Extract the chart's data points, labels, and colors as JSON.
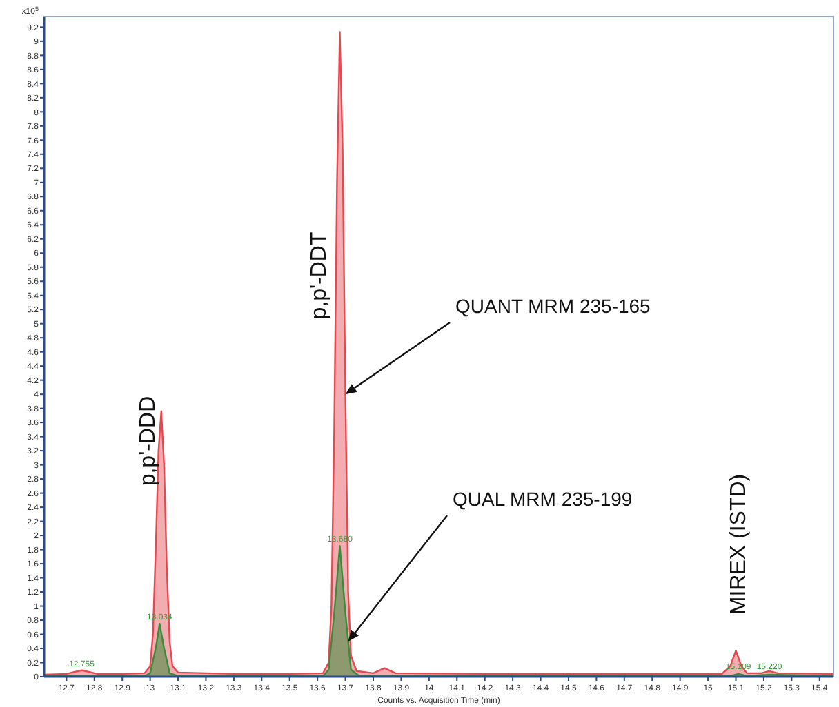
{
  "chart_data": {
    "type": "area",
    "xlabel": "Counts vs. Acquisition Time (min)",
    "ylabel": "x10$^{5}$",
    "xlim": [
      12.62,
      15.45
    ],
    "ylim": [
      0,
      9.35
    ],
    "xticks": [
      12.7,
      12.8,
      12.9,
      13,
      13.1,
      13.2,
      13.3,
      13.4,
      13.5,
      13.6,
      13.7,
      13.8,
      13.9,
      14,
      14.1,
      14.2,
      14.3,
      14.4,
      14.5,
      14.6,
      14.7,
      14.8,
      14.9,
      15,
      15.1,
      15.2,
      15.3,
      15.4
    ],
    "yticks": [
      0,
      0.2,
      0.4,
      0.6,
      0.8,
      1,
      1.2,
      1.4,
      1.6,
      1.8,
      2,
      2.2,
      2.4,
      2.6,
      2.8,
      3,
      3.2,
      3.4,
      3.6,
      3.8,
      4,
      4.2,
      4.4,
      4.6,
      4.8,
      5,
      5.2,
      5.4,
      5.6,
      5.8,
      6,
      6.2,
      6.4,
      6.6,
      6.8,
      7,
      7.2,
      7.4,
      7.6,
      7.8,
      8,
      8.2,
      8.4,
      8.6,
      8.8,
      9,
      9.2
    ],
    "grid": false,
    "series": [
      {
        "color": "#e5484f",
        "x": [
          12.62,
          12.7,
          12.73,
          12.755,
          12.78,
          12.81,
          12.9,
          12.98,
          13.0,
          13.01,
          13.02,
          13.03,
          13.04,
          13.05,
          13.06,
          13.07,
          13.08,
          13.1,
          13.3,
          13.5,
          13.62,
          13.64,
          13.65,
          13.66,
          13.67,
          13.68,
          13.69,
          13.7,
          13.71,
          13.72,
          13.74,
          13.8,
          13.84,
          13.88,
          14.2,
          14.8,
          15.05,
          15.08,
          15.1,
          15.12,
          15.14,
          15.19,
          15.22,
          15.25,
          15.45
        ],
        "values": [
          0.03,
          0.04,
          0.07,
          0.09,
          0.07,
          0.04,
          0.04,
          0.05,
          0.15,
          0.6,
          1.8,
          3.2,
          3.76,
          3.0,
          1.5,
          0.5,
          0.15,
          0.06,
          0.04,
          0.04,
          0.05,
          0.2,
          1.0,
          3.5,
          7.0,
          9.13,
          7.5,
          4.0,
          1.2,
          0.3,
          0.08,
          0.05,
          0.12,
          0.05,
          0.04,
          0.04,
          0.04,
          0.15,
          0.37,
          0.15,
          0.05,
          0.05,
          0.08,
          0.05,
          0.04
        ]
      },
      {
        "color": "#3c8a3c",
        "x": [
          12.62,
          12.98,
          13.0,
          13.02,
          13.034,
          13.05,
          13.07,
          13.1,
          13.62,
          13.64,
          13.66,
          13.68,
          13.7,
          13.72,
          13.75,
          15.08,
          15.109,
          15.14,
          15.22,
          15.45
        ],
        "values": [
          0.01,
          0.01,
          0.05,
          0.4,
          0.75,
          0.4,
          0.05,
          0.01,
          0.01,
          0.1,
          0.9,
          1.85,
          0.9,
          0.1,
          0.01,
          0.01,
          0.04,
          0.01,
          0.03,
          0.01
        ]
      }
    ],
    "annotations": [
      "p,p'-DDD",
      "p,p'-DDT",
      "MIREX (ISTD)",
      {
        "text": "QUANT MRM 235-165",
        "x": 13.7,
        "y": 4.0
      },
      {
        "text": "QUAL MRM 235-199",
        "x": 13.71,
        "y": 0.5
      },
      {
        "text": "12.755",
        "x": 12.755,
        "y": 0.09
      },
      {
        "text": "13.034",
        "x": 13.034,
        "y": 0.75
      },
      {
        "text": "13.680",
        "x": 13.68,
        "y": 1.85
      },
      {
        "text": "15.109",
        "x": 15.109,
        "y": 0.05
      },
      {
        "text": "15.220",
        "x": 15.22,
        "y": 0.05
      }
    ]
  }
}
